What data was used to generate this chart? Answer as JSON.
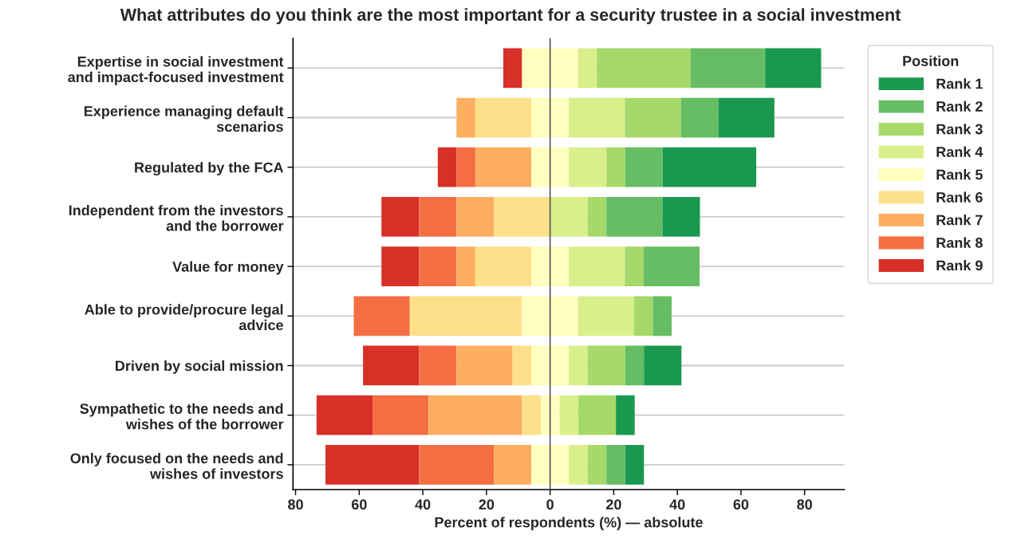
{
  "chart_data": {
    "type": "bar",
    "orientation": "horizontal",
    "title": "What attributes do you think are the most important for a security trustee in a social investment",
    "xlabel": "Percent of respondents (%) — absolute",
    "legend_title": "Position",
    "legend": "top right",
    "grid": "y",
    "categories": [
      "Expertise in social investment\nand impact-focused investment",
      "Experience managing default\nscenarios",
      "Regulated by the FCA",
      "Independent from the investors\nand the borrower",
      "Value for money",
      "Able to provide/procure legal\nadvice",
      "Driven by social mission",
      "Sympathetic to the needs and\nwishes of the borrower",
      "Only focused on the needs and\nwishes of investors"
    ],
    "series": [
      {
        "name": "Rank 9",
        "color": "#d73027",
        "base": [
          -14.7,
          null,
          -35.3,
          -53,
          -53,
          null,
          -58.8,
          -73.4,
          -70.6
        ],
        "values": [
          5.9,
          null,
          5.9,
          11.8,
          11.8,
          null,
          17.6,
          17.6,
          29.4
        ]
      },
      {
        "name": "Rank 8",
        "color": "#f46d43",
        "base": [
          null,
          null,
          -29.4,
          -41.2,
          -41.2,
          -61.7,
          -41.2,
          -55.8,
          -41.2
        ],
        "values": [
          null,
          null,
          5.9,
          11.8,
          11.8,
          17.6,
          11.8,
          17.6,
          23.5
        ]
      },
      {
        "name": "Rank 7",
        "color": "#fdae61",
        "base": [
          null,
          -29.4,
          -23.5,
          -29.4,
          -29.4,
          null,
          -29.4,
          -38.2,
          -17.7
        ],
        "values": [
          null,
          5.9,
          17.6,
          11.8,
          5.9,
          null,
          17.6,
          29.4,
          11.8
        ]
      },
      {
        "name": "Rank 6",
        "color": "#fee08b",
        "base": [
          null,
          -23.5,
          null,
          -17.6,
          -23.5,
          -44.1,
          -11.8,
          -8.8,
          null
        ],
        "values": [
          null,
          17.6,
          null,
          17.6,
          17.6,
          35.3,
          5.9,
          5.9,
          null
        ]
      },
      {
        "name": "Rank 5",
        "color": "#ffffbf",
        "base": [
          -8.8,
          -5.9,
          -5.9,
          null,
          -5.9,
          -8.8,
          -5.9,
          -2.9,
          -5.9
        ],
        "values": [
          17.6,
          11.8,
          11.8,
          null,
          11.8,
          17.6,
          11.8,
          5.9,
          11.8
        ]
      },
      {
        "name": "Rank 4",
        "color": "#d9ef8b",
        "base": [
          8.8,
          5.9,
          5.9,
          0,
          5.9,
          8.8,
          5.9,
          3.0,
          5.9
        ],
        "values": [
          5.9,
          17.6,
          11.8,
          11.8,
          17.6,
          17.6,
          5.9,
          5.9,
          5.9
        ]
      },
      {
        "name": "Rank 3",
        "color": "#a6d96a",
        "base": [
          14.7,
          23.5,
          17.7,
          11.8,
          23.5,
          26.4,
          11.8,
          8.9,
          11.8
        ],
        "values": [
          29.4,
          17.6,
          5.9,
          5.9,
          5.9,
          5.9,
          11.8,
          11.8,
          5.9
        ]
      },
      {
        "name": "Rank 2",
        "color": "#66bd63",
        "base": [
          44.1,
          41.1,
          23.6,
          17.7,
          29.4,
          32.3,
          23.6,
          null,
          17.7
        ],
        "values": [
          23.5,
          11.8,
          11.8,
          17.6,
          17.6,
          5.9,
          5.9,
          null,
          5.9
        ]
      },
      {
        "name": "Rank 1",
        "color": "#1a9850",
        "base": [
          67.6,
          52.9,
          35.4,
          35.3,
          null,
          null,
          29.5,
          20.7,
          23.6
        ],
        "values": [
          17.6,
          17.6,
          29.4,
          11.8,
          null,
          null,
          11.8,
          5.9,
          5.9
        ]
      }
    ],
    "ref_lines": [
      {
        "axis": "x",
        "value": 0,
        "color": "#555555",
        "line_style": "solid"
      }
    ],
    "xlim": [
      -80.8,
      92.5
    ],
    "xticks": [
      {
        "value": -80,
        "label": "80"
      },
      {
        "value": -60,
        "label": "60"
      },
      {
        "value": -40,
        "label": "40"
      },
      {
        "value": -20,
        "label": "20"
      },
      0,
      20,
      40,
      60,
      80
    ]
  }
}
